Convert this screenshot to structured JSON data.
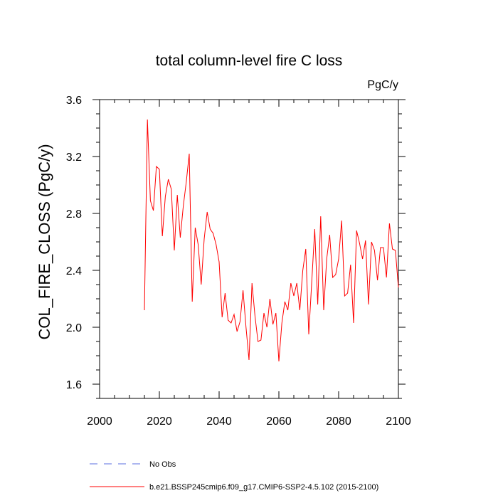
{
  "chart_data": {
    "type": "line",
    "title": "total column-level fire C loss",
    "units_label": "PgC/y",
    "ylabel": "COL_FIRE_CLOSS  (PgC/y)",
    "xlabel": "",
    "xlim": [
      2000,
      2100
    ],
    "ylim": [
      1.5,
      3.6
    ],
    "x_ticks": [
      2000,
      2020,
      2040,
      2060,
      2080,
      2100
    ],
    "x_tick_labels": [
      "2000",
      "2020",
      "2040",
      "2060",
      "2080",
      "2100"
    ],
    "y_ticks": [
      1.6,
      2.0,
      2.4,
      2.8,
      3.2,
      3.6
    ],
    "y_tick_labels": [
      "1.6",
      "2.0",
      "2.4",
      "2.8",
      "3.2",
      "3.6"
    ],
    "legend": [
      {
        "label": "No Obs",
        "color": "#5b6fe0",
        "style": "dashed"
      },
      {
        "label": "b.e21.BSSP245cmip6.f09_g17.CMIP6-SSP2-4.5.102 (2015-2100)",
        "color": "#ff0000",
        "style": "solid"
      }
    ],
    "series": [
      {
        "name": "b.e21.BSSP245cmip6.f09_g17.CMIP6-SSP2-4.5.102 (2015-2100)",
        "color": "#ff0000",
        "x": [
          2015,
          2016,
          2017,
          2018,
          2019,
          2020,
          2021,
          2022,
          2023,
          2024,
          2025,
          2026,
          2027,
          2028,
          2029,
          2030,
          2031,
          2032,
          2033,
          2034,
          2035,
          2036,
          2037,
          2038,
          2039,
          2040,
          2041,
          2042,
          2043,
          2044,
          2045,
          2046,
          2047,
          2048,
          2049,
          2050,
          2051,
          2052,
          2053,
          2054,
          2055,
          2056,
          2057,
          2058,
          2059,
          2060,
          2061,
          2062,
          2063,
          2064,
          2065,
          2066,
          2067,
          2068,
          2069,
          2070,
          2071,
          2072,
          2073,
          2074,
          2075,
          2076,
          2077,
          2078,
          2079,
          2080,
          2081,
          2082,
          2083,
          2084,
          2085,
          2086,
          2087,
          2088,
          2089,
          2090,
          2091,
          2092,
          2093,
          2094,
          2095,
          2096,
          2097,
          2098,
          2099,
          2100
        ],
        "values": [
          2.12,
          3.46,
          2.89,
          2.82,
          3.13,
          3.11,
          2.64,
          2.92,
          3.04,
          2.97,
          2.54,
          2.93,
          2.63,
          2.85,
          3.02,
          3.22,
          2.18,
          2.7,
          2.58,
          2.3,
          2.62,
          2.81,
          2.69,
          2.66,
          2.58,
          2.46,
          2.07,
          2.24,
          2.05,
          2.03,
          2.09,
          1.97,
          2.04,
          2.26,
          2.0,
          1.77,
          2.31,
          2.08,
          1.9,
          1.91,
          2.1,
          2.0,
          2.2,
          2.02,
          2.1,
          1.76,
          2.03,
          2.18,
          2.12,
          2.31,
          2.22,
          2.31,
          2.12,
          2.4,
          2.55,
          1.95,
          2.32,
          2.69,
          2.16,
          2.78,
          2.12,
          2.48,
          2.65,
          2.35,
          2.37,
          2.48,
          2.75,
          2.22,
          2.24,
          2.44,
          2.03,
          2.68,
          2.59,
          2.48,
          2.61,
          2.16,
          2.6,
          2.54,
          2.33,
          2.56,
          2.56,
          2.35,
          2.73,
          2.55,
          2.54,
          2.28
        ]
      }
    ]
  }
}
